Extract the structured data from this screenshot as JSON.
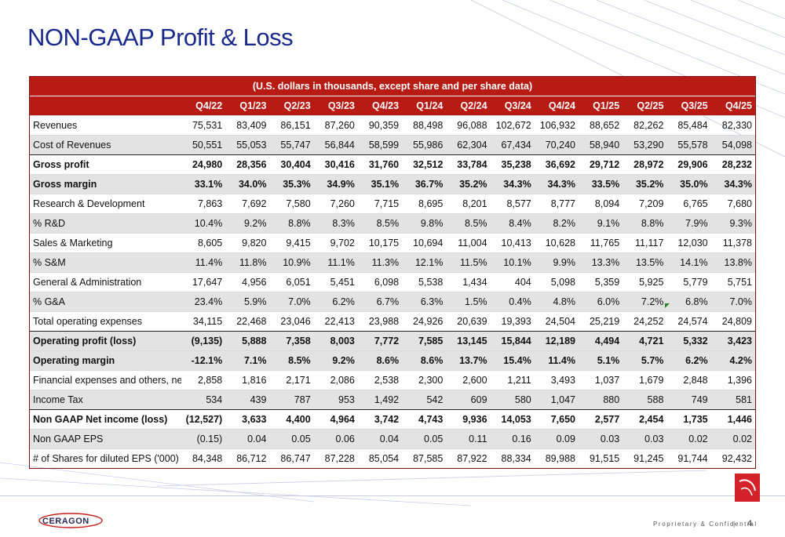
{
  "title": "NON-GAAP Profit & Loss",
  "table": {
    "caption": "(U.S. dollars in thousands, except share and per share data)",
    "columns": [
      "",
      "Q4/22",
      "Q1/23",
      "Q2/23",
      "Q3/23",
      "Q4/23",
      "Q1/24",
      "Q2/24",
      "Q3/24",
      "Q4/24",
      "Q1/25",
      "Q2/25",
      "Q3/25",
      "Q4/25"
    ],
    "rows": [
      {
        "label": "Revenues",
        "values": [
          "75,531",
          "83,409",
          "86,151",
          "87,260",
          "90,359",
          "88,498",
          "96,088",
          "102,672",
          "106,932",
          "88,652",
          "82,262",
          "85,484",
          "82,330"
        ]
      },
      {
        "label": "Cost of Revenues",
        "values": [
          "50,551",
          "55,053",
          "55,747",
          "56,844",
          "58,599",
          "55,986",
          "62,304",
          "67,434",
          "70,240",
          "58,940",
          "53,290",
          "55,578",
          "54,098"
        ]
      },
      {
        "label": "Gross profit",
        "values": [
          "24,980",
          "28,356",
          "30,404",
          "30,416",
          "31,760",
          "32,512",
          "33,784",
          "35,238",
          "36,692",
          "29,712",
          "28,972",
          "29,906",
          "28,232"
        ]
      },
      {
        "label": "Gross margin",
        "values": [
          "33.1%",
          "34.0%",
          "35.3%",
          "34.9%",
          "35.1%",
          "36.7%",
          "35.2%",
          "34.3%",
          "34.3%",
          "33.5%",
          "35.2%",
          "35.0%",
          "34.3%"
        ]
      },
      {
        "label": "Research & Development",
        "values": [
          "7,863",
          "7,692",
          "7,580",
          "7,260",
          "7,715",
          "8,695",
          "8,201",
          "8,577",
          "8,777",
          "8,094",
          "7,209",
          "6,765",
          "7,680"
        ]
      },
      {
        "label": "% R&D",
        "values": [
          "10.4%",
          "9.2%",
          "8.8%",
          "8.3%",
          "8.5%",
          "9.8%",
          "8.5%",
          "8.4%",
          "8.2%",
          "9.1%",
          "8.8%",
          "7.9%",
          "9.3%"
        ]
      },
      {
        "label": "Sales & Marketing",
        "values": [
          "8,605",
          "9,820",
          "9,415",
          "9,702",
          "10,175",
          "10,694",
          "11,004",
          "10,413",
          "10,628",
          "11,765",
          "11,117",
          "12,030",
          "11,378"
        ]
      },
      {
        "label": "% S&M",
        "values": [
          "11.4%",
          "11.8%",
          "10.9%",
          "11.1%",
          "11.3%",
          "12.1%",
          "11.5%",
          "10.1%",
          "9.9%",
          "13.3%",
          "13.5%",
          "14.1%",
          "13.8%"
        ]
      },
      {
        "label": "General & Administration",
        "values": [
          "17,647",
          "4,956",
          "6,051",
          "5,451",
          "6,098",
          "5,538",
          "1,434",
          "404",
          "5,098",
          "5,359",
          "5,925",
          "5,779",
          "5,751"
        ]
      },
      {
        "label": "% G&A",
        "values": [
          "23.4%",
          "5.9%",
          "7.0%",
          "6.2%",
          "6.7%",
          "6.3%",
          "1.5%",
          "0.4%",
          "4.8%",
          "6.0%",
          "7.2%",
          "6.8%",
          "7.0%"
        ]
      },
      {
        "label": "Total operating expenses",
        "values": [
          "34,115",
          "22,468",
          "23,046",
          "22,413",
          "23,988",
          "24,926",
          "20,639",
          "19,393",
          "24,504",
          "25,219",
          "24,252",
          "24,574",
          "24,809"
        ]
      },
      {
        "label": "Operating profit (loss)",
        "values": [
          "(9,135)",
          "5,888",
          "7,358",
          "8,003",
          "7,772",
          "7,585",
          "13,145",
          "15,844",
          "12,189",
          "4,494",
          "4,721",
          "5,332",
          "3,423"
        ]
      },
      {
        "label": "Operating margin",
        "values": [
          "-12.1%",
          "7.1%",
          "8.5%",
          "9.2%",
          "8.6%",
          "8.6%",
          "13.7%",
          "15.4%",
          "11.4%",
          "5.1%",
          "5.7%",
          "6.2%",
          "4.2%"
        ]
      },
      {
        "label": "Financial expenses and others, net",
        "values": [
          "2,858",
          "1,816",
          "2,171",
          "2,086",
          "2,538",
          "2,300",
          "2,600",
          "1,211",
          "3,493",
          "1,037",
          "1,679",
          "2,848",
          "1,396"
        ]
      },
      {
        "label": "Income Tax",
        "values": [
          "534",
          "439",
          "787",
          "953",
          "1,492",
          "542",
          "609",
          "580",
          "1,047",
          "880",
          "588",
          "749",
          "581"
        ]
      },
      {
        "label": "Non GAAP Net income (loss)",
        "values": [
          "(12,527)",
          "3,633",
          "4,400",
          "4,964",
          "3,742",
          "4,743",
          "9,936",
          "14,053",
          "7,650",
          "2,577",
          "2,454",
          "1,735",
          "1,446"
        ]
      },
      {
        "label": "Non GAAP EPS",
        "values": [
          "(0.15)",
          "0.04",
          "0.05",
          "0.06",
          "0.04",
          "0.05",
          "0.11",
          "0.16",
          "0.09",
          "0.03",
          "0.03",
          "0.02",
          "0.02"
        ]
      },
      {
        "label": "# of Shares for diluted EPS ('000)",
        "values": [
          "84,348",
          "86,712",
          "86,747",
          "87,228",
          "85,054",
          "87,585",
          "87,922",
          "88,334",
          "89,988",
          "91,515",
          "91,245",
          "91,744",
          "92,432"
        ]
      }
    ]
  },
  "footer": {
    "logo_text": "CERAGON",
    "confidential": "Proprietary & Confidential",
    "divider": "|",
    "page_number": "4"
  },
  "colors": {
    "title": "#1a2a8c",
    "header_bg": "#b81a14",
    "shaded_row": "#e3e3e3",
    "brand_red": "#d4222a"
  },
  "icons": [
    "ceragon-logo-icon",
    "brand-mark-icon",
    "comment-marker-icon"
  ]
}
